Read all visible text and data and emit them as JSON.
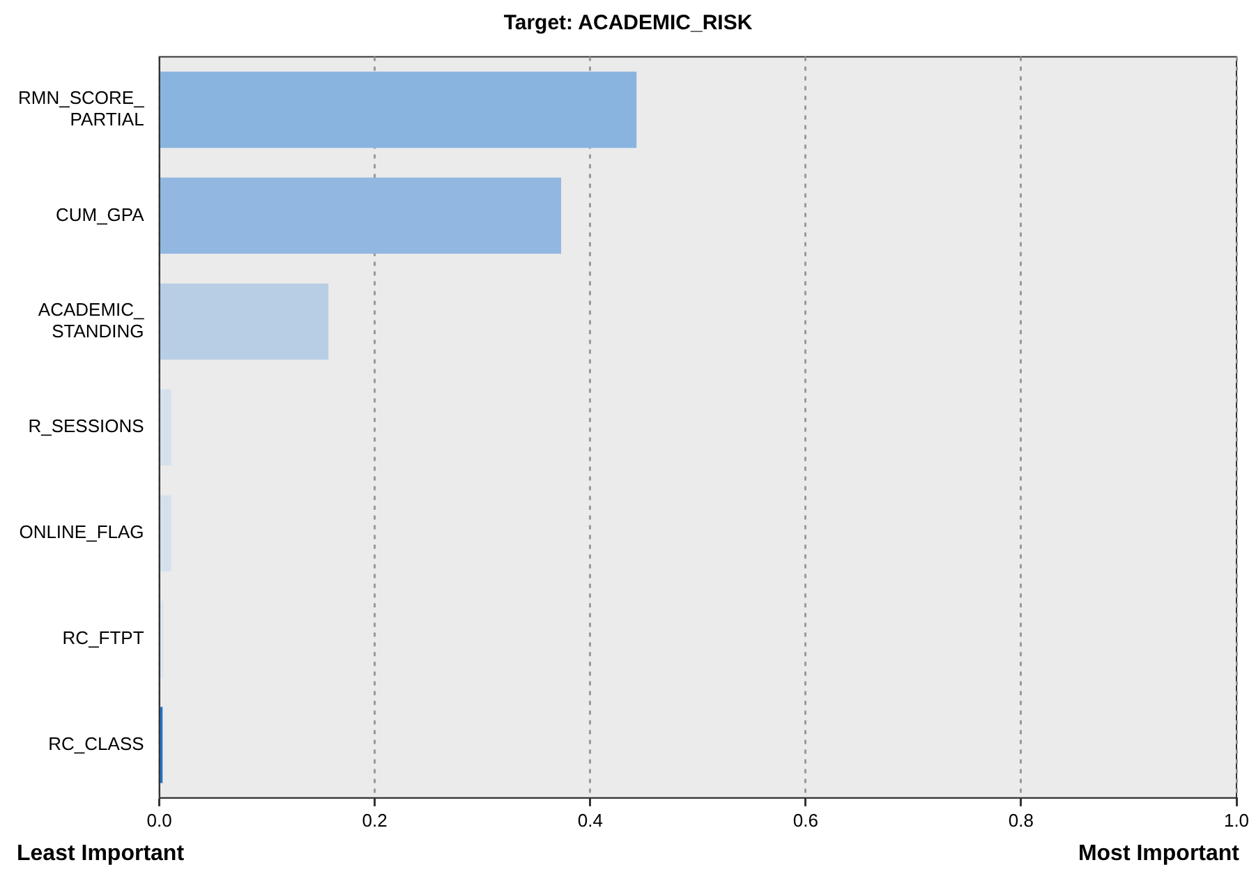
{
  "chart_data": {
    "type": "bar",
    "orientation": "horizontal",
    "title": "Target: ACADEMIC_RISK",
    "categories": [
      "RMN_SCORE_PARTIAL",
      "CUM_GPA",
      "ACADEMIC_STANDING",
      "R_SESSIONS",
      "ONLINE_FLAG",
      "RC_FTPT",
      "RC_CLASS"
    ],
    "values": [
      0.443,
      0.373,
      0.157,
      0.011,
      0.011,
      0.004,
      0.003
    ],
    "colors": [
      "#8ab4e0",
      "#92b7e0",
      "#b8cee5",
      "#d5e0ec",
      "#d5e0ec",
      "#dde5ee",
      "#1f6fc8"
    ],
    "xlim": [
      0,
      1
    ],
    "xticks": [
      {
        "value": 0,
        "label": "0.0"
      },
      0.2,
      0.4,
      0.6,
      0.8,
      {
        "value": 1,
        "label": "1.0"
      }
    ],
    "grid": "x",
    "legend": false,
    "annotations": [
      "Least Important",
      "Most Important"
    ]
  }
}
